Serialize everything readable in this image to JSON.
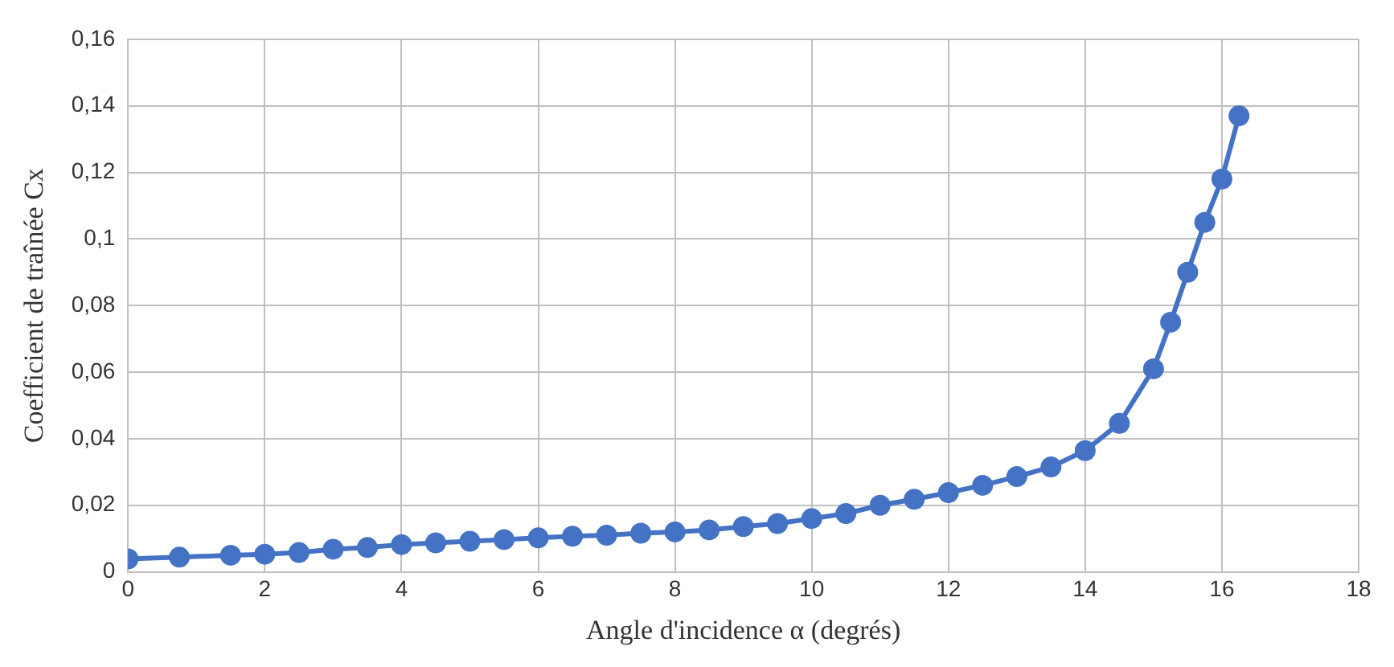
{
  "chart_data": {
    "type": "line",
    "xlabel": "Angle d'incidence α (degrés)",
    "ylabel": "Coefficient de traînée Cx",
    "x": [
      0,
      0.75,
      1.5,
      2,
      2.5,
      3,
      3.5,
      4,
      4.5,
      5,
      5.5,
      6,
      6.5,
      7,
      7.5,
      8,
      8.5,
      9,
      9.5,
      10,
      10.5,
      11,
      11.5,
      12,
      12.5,
      13,
      13.5,
      14,
      14.5,
      15,
      15.25,
      15.5,
      15.75,
      16,
      16.25
    ],
    "series": [
      {
        "color": "#4472c4",
        "values": [
          0.0039,
          0.0044,
          0.005,
          0.0053,
          0.0058,
          0.0068,
          0.0073,
          0.0082,
          0.0087,
          0.0092,
          0.0097,
          0.0102,
          0.0107,
          0.011,
          0.0116,
          0.012,
          0.0126,
          0.0136,
          0.0145,
          0.016,
          0.0175,
          0.02,
          0.0218,
          0.0238,
          0.026,
          0.0286,
          0.0315,
          0.0364,
          0.0446,
          0.061,
          0.075,
          0.09,
          0.105,
          0.118,
          0.137
        ]
      }
    ],
    "xlim": [
      0,
      18
    ],
    "xticks": [
      0,
      2,
      4,
      6,
      8,
      10,
      12,
      14,
      16,
      18
    ],
    "ylim": [
      0,
      0.16
    ],
    "yticks": [
      {
        "value": 0,
        "label": "0"
      },
      {
        "value": 0.02,
        "label": "0,02"
      },
      {
        "value": 0.04,
        "label": "0,04"
      },
      {
        "value": 0.06,
        "label": "0,06"
      },
      {
        "value": 0.08,
        "label": "0,08"
      },
      {
        "value": 0.1,
        "label": "0,1"
      },
      {
        "value": 0.12,
        "label": "0,12"
      },
      {
        "value": 0.14,
        "label": "0,14"
      },
      {
        "value": 0.16,
        "label": "0,16"
      }
    ],
    "grid": true,
    "legend": false,
    "marker": "circle",
    "line_style": "solid"
  }
}
